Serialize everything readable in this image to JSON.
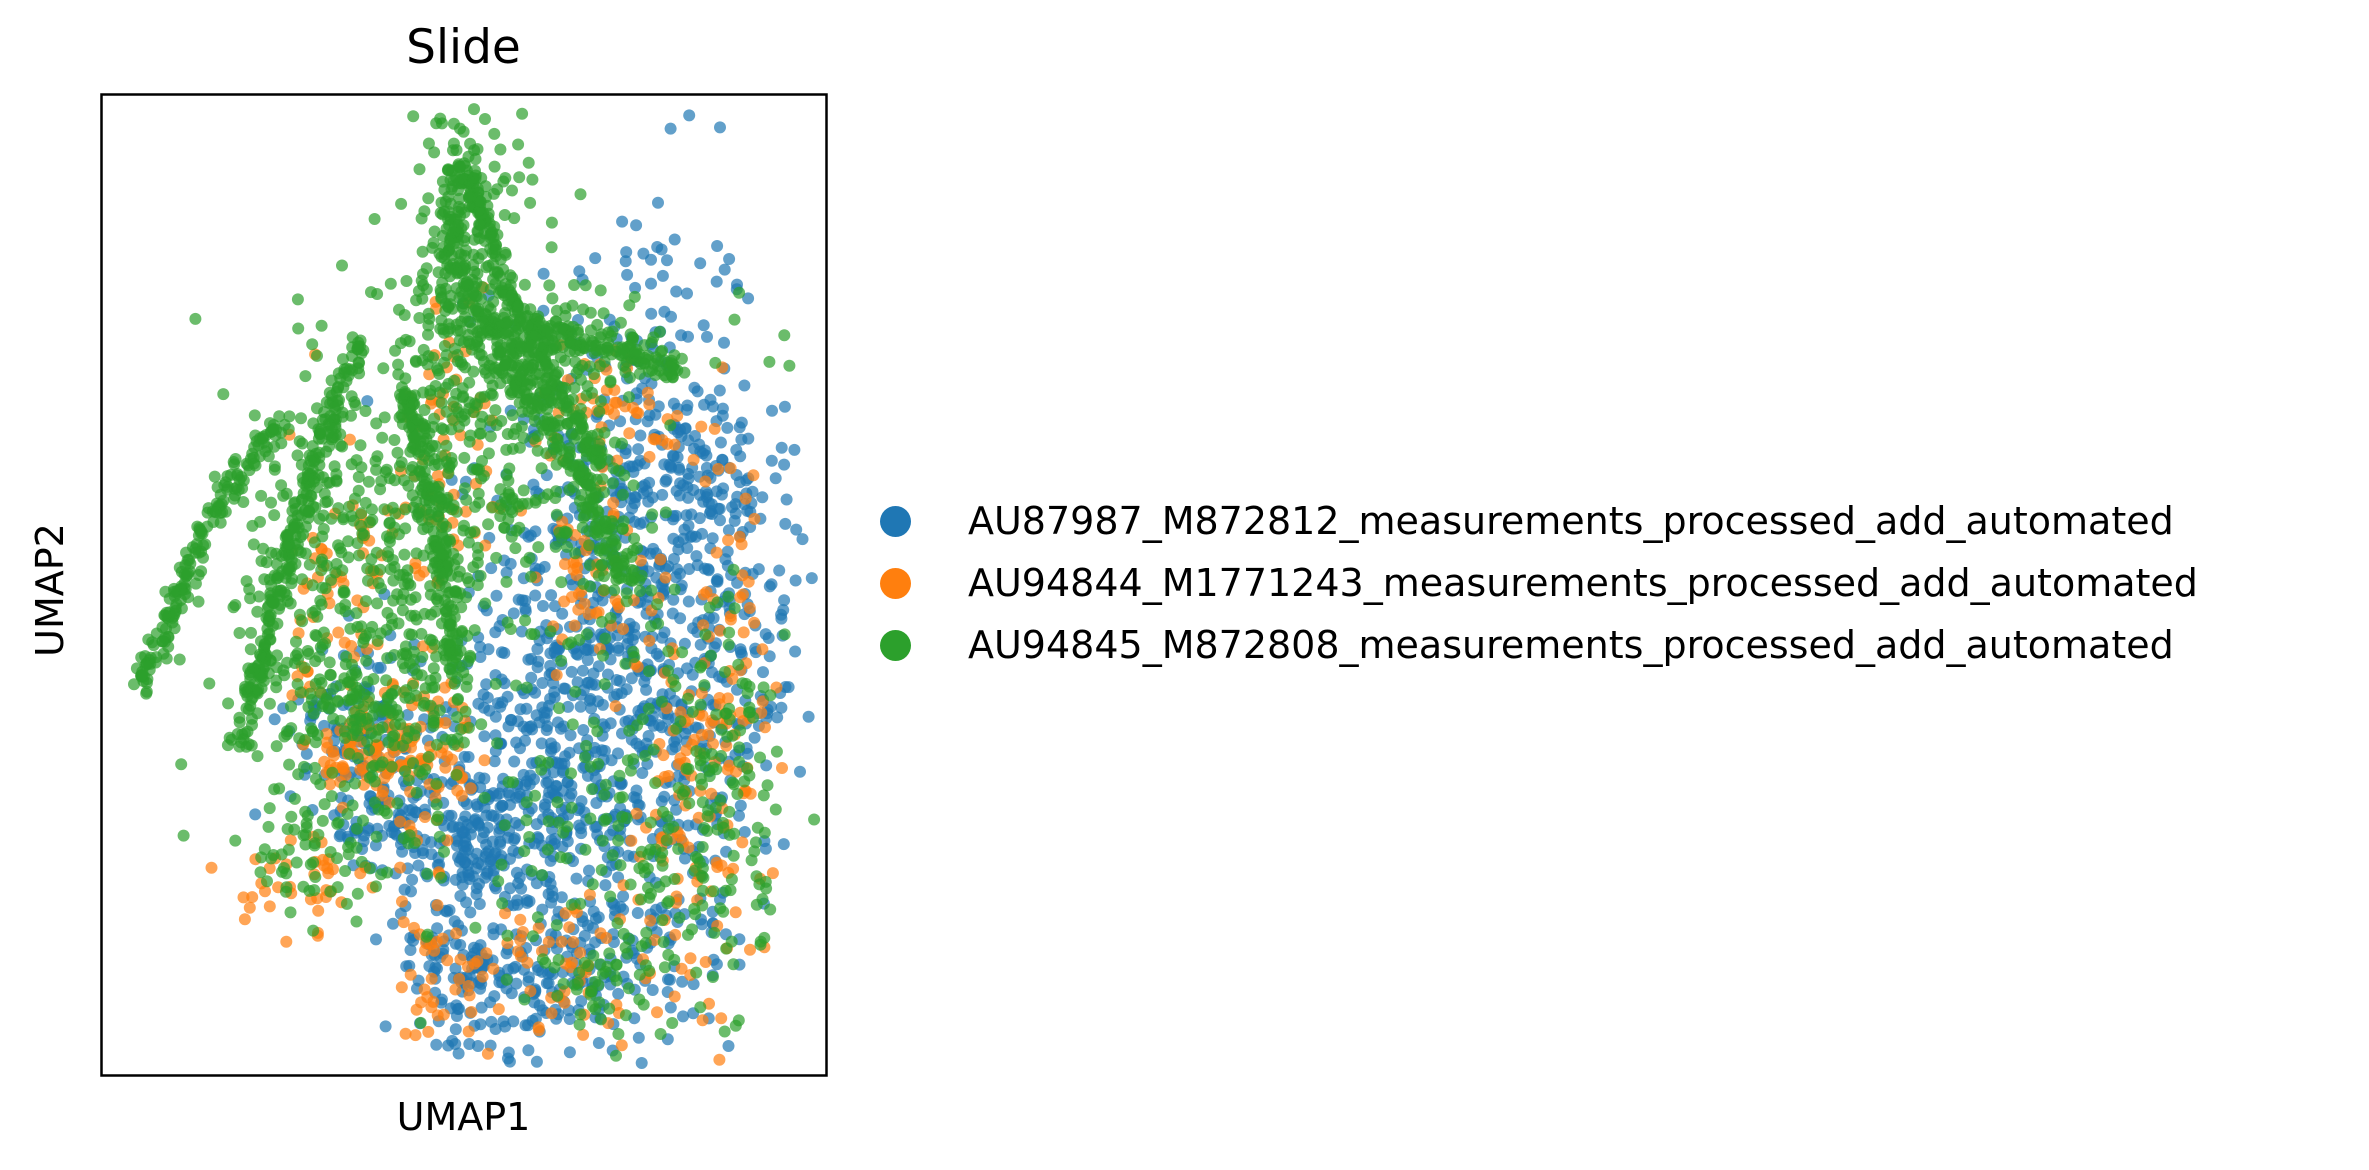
{
  "chart_data": {
    "type": "scatter",
    "title": "Slide",
    "xlabel": "UMAP1",
    "ylabel": "UMAP2",
    "xticks": [],
    "yticks": [],
    "xlim": [
      0,
      10
    ],
    "ylim": [
      0,
      12
    ],
    "grid": false,
    "legend_position": "right",
    "series": [
      {
        "name": "AU87987_M872812_measurements_processed_add_automated",
        "color": "#1f77b4",
        "regions": [
          [
            7.3,
            7.4,
            0.9,
            1.8,
            260
          ],
          [
            7.7,
            5.6,
            0.8,
            1.3,
            220
          ],
          [
            6.3,
            5.3,
            0.7,
            1.2,
            180
          ],
          [
            5.9,
            3.4,
            0.9,
            0.8,
            200
          ],
          [
            5.1,
            2.9,
            0.5,
            0.4,
            120
          ],
          [
            7.5,
            2.8,
            0.8,
            1.3,
            200
          ],
          [
            6.2,
            1.2,
            0.7,
            0.5,
            130
          ],
          [
            4.9,
            1.3,
            0.5,
            0.6,
            110
          ],
          [
            3.6,
            4.3,
            0.5,
            0.6,
            110
          ],
          [
            3.9,
            3.1,
            0.4,
            0.4,
            60
          ],
          [
            8.9,
            5.3,
            0.4,
            1.3,
            100
          ],
          [
            8.1,
            7.6,
            0.4,
            0.6,
            60
          ]
        ]
      },
      {
        "name": "AU94844_M1771243_measurements_processed_add_automated",
        "color": "#ff7f0e",
        "regions": [
          [
            4.4,
            4.1,
            0.4,
            0.4,
            70
          ],
          [
            3.6,
            3.9,
            0.4,
            0.3,
            60
          ],
          [
            3.4,
            5.8,
            0.4,
            1.1,
            70
          ],
          [
            4.8,
            7.7,
            0.3,
            1.0,
            60
          ],
          [
            7.1,
            8.2,
            0.6,
            0.4,
            50
          ],
          [
            8.0,
            3.0,
            0.5,
            1.3,
            100
          ],
          [
            8.8,
            5.2,
            0.3,
            1.4,
            60
          ],
          [
            6.3,
            1.3,
            0.8,
            0.5,
            60
          ],
          [
            2.8,
            2.4,
            0.4,
            0.3,
            40
          ],
          [
            4.5,
            1.5,
            0.3,
            0.9,
            40
          ],
          [
            6.7,
            6.0,
            0.6,
            0.6,
            50
          ]
        ]
      },
      {
        "name": "AU94845_M872808_measurements_processed_add_automated",
        "color": "#2ca02c",
        "regions": [
          [
            5.0,
            10.2,
            0.4,
            1.3,
            200
          ],
          [
            6.3,
            8.9,
            1.3,
            0.3,
            150
          ],
          [
            4.6,
            7.1,
            1.1,
            1.3,
            260
          ],
          [
            4.3,
            5.1,
            0.5,
            1.3,
            160
          ],
          [
            5.5,
            7.9,
            0.6,
            0.9,
            120
          ],
          [
            2.8,
            5.4,
            0.7,
            1.0,
            150
          ],
          [
            3.6,
            4.5,
            0.5,
            0.4,
            80
          ],
          [
            7.0,
            6.2,
            0.4,
            1.1,
            80
          ],
          [
            8.0,
            2.7,
            0.6,
            1.2,
            130
          ],
          [
            8.7,
            4.0,
            0.4,
            1.0,
            70
          ],
          [
            2.9,
            2.7,
            0.5,
            0.4,
            60
          ],
          [
            6.3,
            2.8,
            0.7,
            0.8,
            60
          ],
          [
            6.8,
            1.1,
            0.5,
            0.3,
            40
          ],
          [
            3.1,
            7.2,
            0.5,
            0.5,
            60
          ]
        ],
        "strands": [
          [
            [
              0.5,
              4.7
            ],
            [
              1.5,
              6.8
            ],
            [
              2.4,
              8.0
            ]
          ],
          [
            [
              1.9,
              4.0
            ],
            [
              2.5,
              6.1
            ],
            [
              3.2,
              8.2
            ],
            [
              3.6,
              8.9
            ]
          ],
          [
            [
              5.0,
              11.2
            ],
            [
              4.8,
              10.1
            ],
            [
              5.3,
              9.2
            ],
            [
              6.0,
              8.2
            ],
            [
              6.8,
              7.0
            ],
            [
              7.3,
              6.0
            ]
          ],
          [
            [
              5.0,
              11.2
            ],
            [
              5.6,
              9.6
            ],
            [
              6.1,
              8.7
            ],
            [
              6.9,
              7.4
            ]
          ],
          [
            [
              5.3,
              9.2
            ],
            [
              6.5,
              9.0
            ],
            [
              7.4,
              8.8
            ],
            [
              8.0,
              8.6
            ]
          ],
          [
            [
              4.2,
              8.4
            ],
            [
              4.7,
              6.5
            ],
            [
              4.9,
              4.8
            ]
          ]
        ]
      }
    ]
  }
}
